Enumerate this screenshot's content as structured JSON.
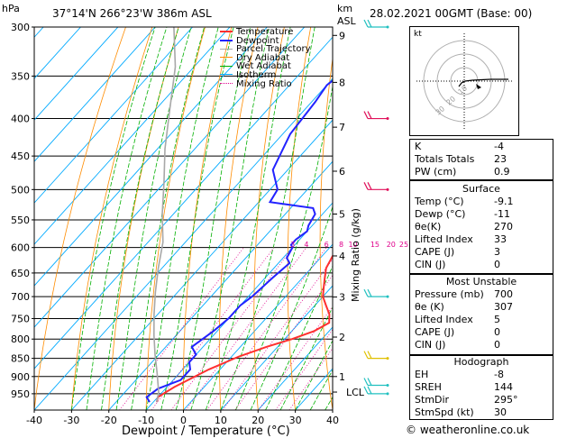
{
  "header": {
    "hpa": "hPa",
    "location": "37°14'N  266°23'W  386m  ASL",
    "km": "km",
    "asl": "ASL",
    "datetime": "28.02.2021  00GMT  (Base: 00)"
  },
  "chart_data": {
    "type": "line",
    "title": "",
    "xlabel": "Dewpoint / Temperature (°C)",
    "ylabel_right": "Mixing Ratio (g/kg)",
    "pressure_levels": [
      300,
      350,
      400,
      450,
      500,
      550,
      600,
      650,
      700,
      750,
      800,
      850,
      900,
      950
    ],
    "x_ticks": [
      -40,
      -30,
      -20,
      -10,
      0,
      10,
      20,
      30,
      40
    ],
    "xlim": [
      -40,
      40
    ],
    "ylim_hpa": [
      300,
      1000
    ],
    "km_labels": [
      {
        "km": "9",
        "p": 308
      },
      {
        "km": "8",
        "p": 357
      },
      {
        "km": "7",
        "p": 411
      },
      {
        "km": "6",
        "p": 472
      },
      {
        "km": "5",
        "p": 540
      },
      {
        "km": "4",
        "p": 616
      },
      {
        "km": "3",
        "p": 701
      },
      {
        "km": "2",
        "p": 795
      },
      {
        "km": "1",
        "p": 900
      },
      {
        "km": "LCL",
        "p": 945
      }
    ],
    "mixing_ratio_labels": [
      "1",
      "2",
      "3",
      "4",
      "6",
      "8",
      "10",
      "15",
      "20",
      "25"
    ],
    "legend": [
      "Temperature",
      "Dewpoint",
      "Parcel Trajectory",
      "Dry Adiabat",
      "Wet Adiabat",
      "Isotherm",
      "Mixing Ratio"
    ],
    "series": [
      {
        "name": "Temperature",
        "points": [
          [
            -9.1,
            975
          ],
          [
            -10,
            960
          ],
          [
            -8,
            930
          ],
          [
            -3,
            880
          ],
          [
            2,
            845
          ],
          [
            7,
            820
          ],
          [
            12,
            800
          ],
          [
            16,
            780
          ],
          [
            18,
            760
          ],
          [
            16,
            740
          ],
          [
            13,
            720
          ],
          [
            10,
            700
          ],
          [
            8,
            680
          ],
          [
            6,
            660
          ],
          [
            4,
            640
          ],
          [
            3,
            620
          ],
          [
            2,
            600
          ],
          [
            1,
            580
          ],
          [
            0,
            560
          ],
          [
            -1,
            545
          ],
          [
            -1,
            530
          ],
          [
            -3,
            510
          ],
          [
            -5,
            490
          ],
          [
            -8,
            460
          ],
          [
            -12,
            430
          ],
          [
            -15,
            400
          ],
          [
            -20,
            370
          ],
          [
            -25,
            340
          ],
          [
            -29,
            310
          ],
          [
            -30,
            300
          ]
        ]
      },
      {
        "name": "Dewpoint",
        "points": [
          [
            -11,
            975
          ],
          [
            -13,
            960
          ],
          [
            -12,
            935
          ],
          [
            -8,
            910
          ],
          [
            -8,
            880
          ],
          [
            -10,
            860
          ],
          [
            -10,
            840
          ],
          [
            -13,
            820
          ],
          [
            -12,
            800
          ],
          [
            -11,
            780
          ],
          [
            -10,
            750
          ],
          [
            -10,
            720
          ],
          [
            -9,
            700
          ],
          [
            -8,
            660
          ],
          [
            -7,
            630
          ],
          [
            -9,
            620
          ],
          [
            -10,
            600
          ],
          [
            -11,
            595
          ],
          [
            -11,
            585
          ],
          [
            -10,
            570
          ],
          [
            -11,
            560
          ],
          [
            -12,
            540
          ],
          [
            -14,
            530
          ],
          [
            -27,
            520
          ],
          [
            -28,
            500
          ],
          [
            -34,
            470
          ],
          [
            -38,
            420
          ],
          [
            -39,
            380
          ],
          [
            -40,
            360
          ],
          [
            -38,
            340
          ],
          [
            -36,
            320
          ],
          [
            -35,
            312
          ],
          [
            -26,
            300
          ]
        ]
      },
      {
        "name": "Parcel Trajectory",
        "points": [
          [
            -9.1,
            975
          ],
          [
            -11,
            945
          ],
          [
            -16,
            890
          ],
          [
            -21,
            840
          ],
          [
            -26,
            790
          ],
          [
            -31,
            740
          ],
          [
            -36,
            690
          ],
          [
            -41,
            640
          ],
          [
            -46,
            590
          ],
          [
            -53,
            540
          ],
          [
            -60,
            490
          ],
          [
            -68,
            440
          ],
          [
            -76,
            390
          ],
          [
            -85,
            340
          ],
          [
            -95,
            300
          ]
        ]
      }
    ]
  },
  "hodograph": {
    "label": "kt",
    "ring_labels": [
      "10",
      "20",
      "30"
    ]
  },
  "indices": {
    "k_label": "K",
    "k_value": "-4",
    "tt_label": "Totals Totals",
    "tt_value": "23",
    "pw_label": "PW (cm)",
    "pw_value": "0.9"
  },
  "surface": {
    "title": "Surface",
    "rows": [
      {
        "label": "Temp (°C)",
        "value": "-9.1"
      },
      {
        "label": "Dewp (°C)",
        "value": "-11"
      },
      {
        "label": "θe(K)",
        "value": "270"
      },
      {
        "label": "Lifted Index",
        "value": "33"
      },
      {
        "label": "CAPE (J)",
        "value": "3"
      },
      {
        "label": "CIN (J)",
        "value": "0"
      }
    ]
  },
  "most_unstable": {
    "title": "Most Unstable",
    "rows": [
      {
        "label": "Pressure (mb)",
        "value": "700"
      },
      {
        "label": "θe (K)",
        "value": "307"
      },
      {
        "label": "Lifted Index",
        "value": "5"
      },
      {
        "label": "CAPE (J)",
        "value": "0"
      },
      {
        "label": "CIN (J)",
        "value": "0"
      }
    ]
  },
  "hodograph_table": {
    "title": "Hodograph",
    "rows": [
      {
        "label": "EH",
        "value": "-8"
      },
      {
        "label": "SREH",
        "value": "144"
      },
      {
        "label": "StmDir",
        "value": "295°"
      },
      {
        "label": "StmSpd (kt)",
        "value": "30"
      }
    ]
  },
  "footer": {
    "copyright": "© weatheronline.co.uk"
  },
  "colors": {
    "temperature": "#ff3030",
    "dewpoint": "#2222ff",
    "parcel": "#a8a8a8",
    "dry_adiabat": "#ff8c00",
    "wet_adiabat": "#00b000",
    "isotherm": "#00aaff",
    "mixing_ratio": "#e0008c"
  }
}
